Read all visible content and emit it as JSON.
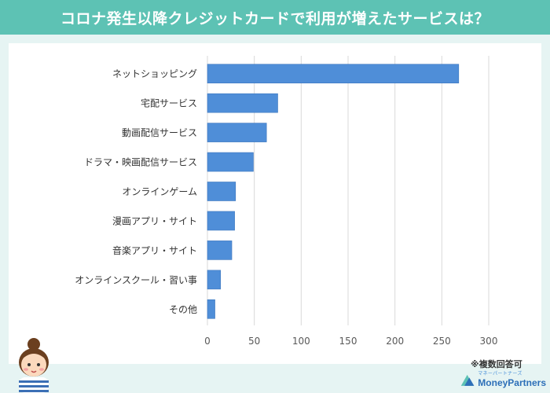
{
  "header": {
    "title": "コロナ発生以降クレジットカードで利用が増えたサービスは？"
  },
  "note": "※複数回答可",
  "brand": {
    "name": "MoneyPartners",
    "tagline": "マネーパートナーズ"
  },
  "colors": {
    "header": "#5dc2b4",
    "bar": "#4f8ed8",
    "background": "#e6f4f3"
  },
  "chart_data": {
    "type": "bar",
    "orientation": "horizontal",
    "categories": [
      "ネットショッピング",
      "宅配サービス",
      "動画配信サービス",
      "ドラマ・映画配信サービス",
      "オンラインゲーム",
      "漫画アプリ・サイト",
      "音楽アプリ・サイト",
      "オンラインスクール・習い事",
      "その他"
    ],
    "values": [
      268,
      75,
      63,
      49,
      30,
      29,
      26,
      14,
      8
    ],
    "xlim": [
      0,
      300
    ],
    "xticks": [
      "0",
      "50",
      "100",
      "150",
      "200",
      "250",
      "300"
    ],
    "grid": true,
    "title": "",
    "xlabel": "",
    "ylabel": ""
  }
}
